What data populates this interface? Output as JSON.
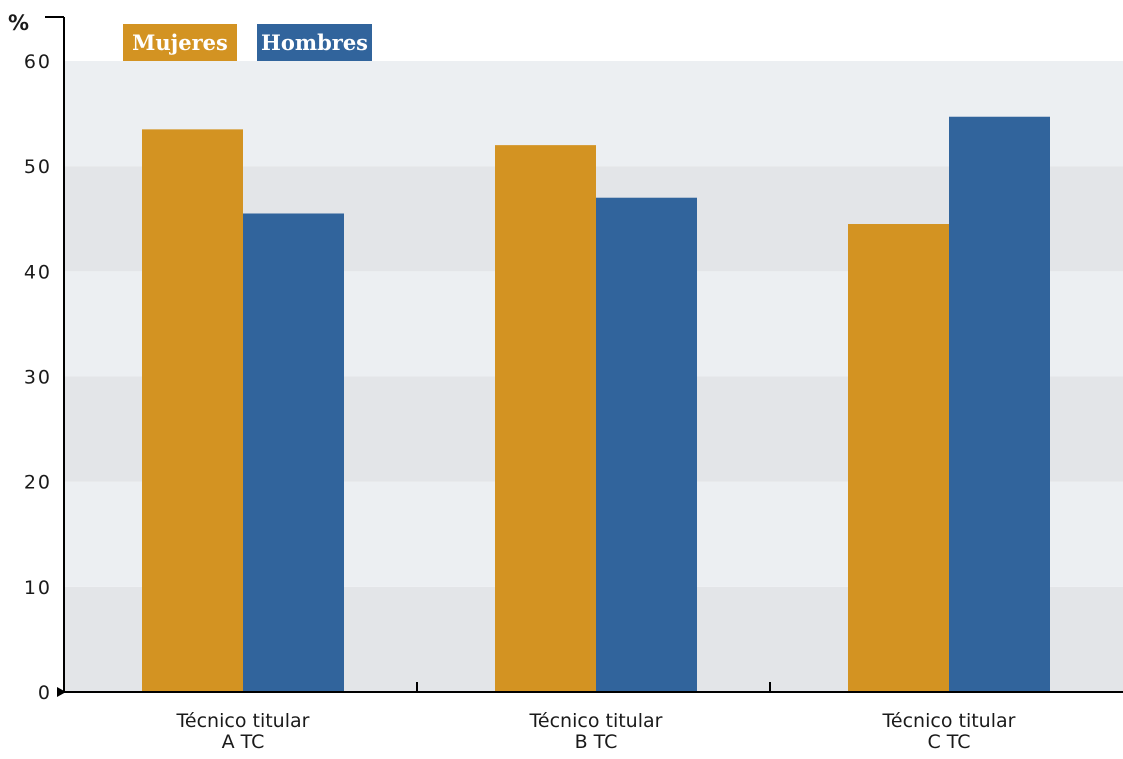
{
  "chart_data": {
    "type": "bar",
    "ylabel": "%",
    "ylim": [
      0,
      60
    ],
    "yticks": [
      0,
      10,
      20,
      30,
      40,
      50,
      60
    ],
    "grid": "alternating horizontal bands",
    "legend_position": "top-left",
    "categories": [
      [
        "Técnico titular",
        "A TC"
      ],
      [
        "Técnico titular",
        "B TC"
      ],
      [
        "Técnico titular",
        "C TC"
      ]
    ],
    "series": [
      {
        "name": "Mujeres",
        "color": "#d39322",
        "values": [
          53.5,
          52.0,
          44.5
        ]
      },
      {
        "name": "Hombres",
        "color": "#31649c",
        "values": [
          45.5,
          47.0,
          54.7
        ]
      }
    ]
  }
}
